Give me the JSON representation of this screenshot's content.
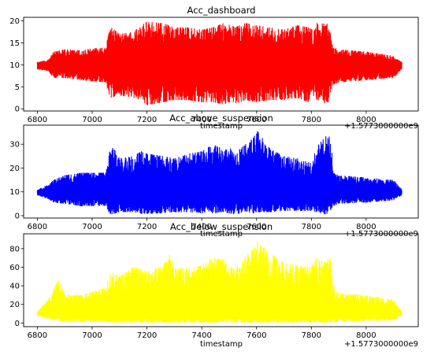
{
  "chart_data": [
    {
      "type": "line",
      "title": "Acc_dashboard",
      "xlabel": "timestamp",
      "ylabel": "",
      "x_offset_label": "+1.5773000000e9",
      "x_offset": 1577300000,
      "xlim": [
        6750,
        8190
      ],
      "ylim": [
        -0.5,
        20.8
      ],
      "xticks": [
        6800,
        7000,
        7200,
        7400,
        7600,
        7800,
        8000
      ],
      "xtick_labels": [
        "6800",
        "7000",
        "7200",
        "7400",
        "7600",
        "7800",
        "8000"
      ],
      "yticks": [
        0,
        5,
        10,
        15,
        20
      ],
      "ytick_labels": [
        "0",
        "5",
        "10",
        "15",
        "20"
      ],
      "grid": false,
      "series": [
        {
          "color": "#ff0000",
          "x_range": [
            6800,
            8130
          ],
          "baseline": 9.8,
          "envelope": {
            "x": [
              6800,
              6840,
              6860,
              6900,
              6960,
              7050,
              7060,
              7070,
              7100,
              7150,
              7180,
              7200,
              7260,
              7300,
              7350,
              7400,
              7440,
              7480,
              7500,
              7520,
              7560,
              7600,
              7650,
              7700,
              7750,
              7790,
              7800,
              7820,
              7860,
              7870,
              7880,
              7900,
              8000,
              8100,
              8130
            ],
            "upper": [
              10.6,
              11.2,
              13.0,
              13.5,
              13.5,
              14.0,
              17.0,
              18.5,
              17.0,
              17.5,
              19.0,
              19.8,
              19.5,
              18.5,
              18.5,
              18.0,
              18.5,
              19.5,
              19.7,
              18.5,
              19.5,
              19.0,
              18.5,
              18.0,
              19.0,
              18.5,
              18.0,
              19.5,
              19.3,
              17.0,
              14.0,
              13.5,
              13.0,
              12.0,
              10.6
            ],
            "lower": [
              9.0,
              8.5,
              7.0,
              7.0,
              6.5,
              6.0,
              3.5,
              2.5,
              3.0,
              2.5,
              2.0,
              0.8,
              1.5,
              2.0,
              2.0,
              1.5,
              1.5,
              1.0,
              1.5,
              1.0,
              2.0,
              1.5,
              2.0,
              2.0,
              2.5,
              1.5,
              3.5,
              2.0,
              0.8,
              4.0,
              5.5,
              6.0,
              6.5,
              7.0,
              9.0
            ]
          }
        }
      ]
    },
    {
      "type": "line",
      "title": "Acc_above_suspension",
      "xlabel": "timestamp",
      "ylabel": "",
      "x_offset_label": "+1.5773000000e9",
      "x_offset": 1577300000,
      "xlim": [
        6750,
        8190
      ],
      "ylim": [
        -1,
        38
      ],
      "xticks": [
        6800,
        7000,
        7200,
        7400,
        7600,
        7800,
        8000
      ],
      "xtick_labels": [
        "6800",
        "7000",
        "7200",
        "7400",
        "7600",
        "7800",
        "8000"
      ],
      "yticks": [
        0,
        10,
        20,
        30
      ],
      "ytick_labels": [
        "0",
        "10",
        "20",
        "30"
      ],
      "grid": false,
      "series": [
        {
          "color": "#0000ff",
          "x_range": [
            6800,
            8130
          ],
          "baseline": 9.8,
          "envelope": {
            "x": [
              6800,
              6840,
              6860,
              6900,
              6960,
              7050,
              7060,
              7070,
              7100,
              7150,
              7180,
              7200,
              7260,
              7300,
              7350,
              7400,
              7440,
              7480,
              7500,
              7520,
              7560,
              7590,
              7600,
              7650,
              7700,
              7750,
              7800,
              7820,
              7850,
              7870,
              7880,
              7900,
              8000,
              8100,
              8130
            ],
            "upper": [
              11.0,
              13.0,
              15.0,
              17.0,
              18.0,
              18.0,
              25.0,
              30.0,
              24.0,
              25.0,
              27.0,
              26.0,
              25.0,
              24.0,
              26.0,
              27.0,
              30.0,
              28.0,
              29.0,
              26.0,
              30.0,
              33.0,
              36.0,
              28.0,
              25.0,
              24.0,
              22.0,
              29.0,
              33.0,
              35.0,
              18.0,
              17.0,
              16.0,
              15.0,
              11.0
            ],
            "lower": [
              8.5,
              7.0,
              5.5,
              5.0,
              4.0,
              4.0,
              1.5,
              0.5,
              1.5,
              1.5,
              0.8,
              0.8,
              1.0,
              1.5,
              1.5,
              1.0,
              1.0,
              1.5,
              1.0,
              0.5,
              1.5,
              1.0,
              1.5,
              1.5,
              2.0,
              2.0,
              2.0,
              1.5,
              0.5,
              1.0,
              4.0,
              5.0,
              5.5,
              6.5,
              8.5
            ]
          }
        }
      ]
    },
    {
      "type": "line",
      "title": "Acc_below_suspension",
      "xlabel": "timestamp",
      "ylabel": "",
      "x_offset_label": "+1.5773000000e9",
      "x_offset": 1577300000,
      "xlim": [
        6750,
        8190
      ],
      "ylim": [
        -4,
        96
      ],
      "xticks": [
        6800,
        7000,
        7200,
        7400,
        7600,
        7800,
        8000
      ],
      "xtick_labels": [
        "6800",
        "7000",
        "7200",
        "7400",
        "7600",
        "7800",
        "8000"
      ],
      "yticks": [
        0,
        20,
        40,
        60,
        80
      ],
      "ytick_labels": [
        "0",
        "20",
        "40",
        "60",
        "80"
      ],
      "grid": false,
      "series": [
        {
          "color": "#ffff00",
          "x_range": [
            6800,
            8130
          ],
          "baseline": 10,
          "envelope": {
            "x": [
              6800,
              6840,
              6880,
              6900,
              6960,
              7050,
              7060,
              7070,
              7100,
              7150,
              7180,
              7200,
              7260,
              7280,
              7300,
              7350,
              7400,
              7440,
              7480,
              7500,
              7520,
              7560,
              7590,
              7600,
              7650,
              7700,
              7750,
              7800,
              7820,
              7850,
              7870,
              7880,
              7900,
              8000,
              8100,
              8130
            ],
            "upper": [
              12.0,
              25.0,
              48.0,
              30.0,
              30.0,
              38.0,
              48.0,
              55.0,
              50.0,
              60.0,
              58.0,
              55.0,
              62.0,
              75.0,
              60.0,
              58.0,
              62.0,
              70.0,
              68.0,
              62.0,
              58.0,
              72.0,
              80.0,
              88.0,
              75.0,
              65.0,
              62.0,
              60.0,
              70.0,
              65.0,
              70.0,
              42.0,
              32.0,
              30.0,
              25.0,
              12.0
            ],
            "lower": [
              8.0,
              4.0,
              2.0,
              1.5,
              1.0,
              1.0,
              0.5,
              0.3,
              0.5,
              0.5,
              0.3,
              0.3,
              0.5,
              0.3,
              0.3,
              0.5,
              0.3,
              0.3,
              0.5,
              0.3,
              0.3,
              0.3,
              0.3,
              0.3,
              0.3,
              0.5,
              0.5,
              0.5,
              0.3,
              0.3,
              0.3,
              1.0,
              1.5,
              2.0,
              3.0,
              8.0
            ]
          }
        }
      ]
    }
  ]
}
